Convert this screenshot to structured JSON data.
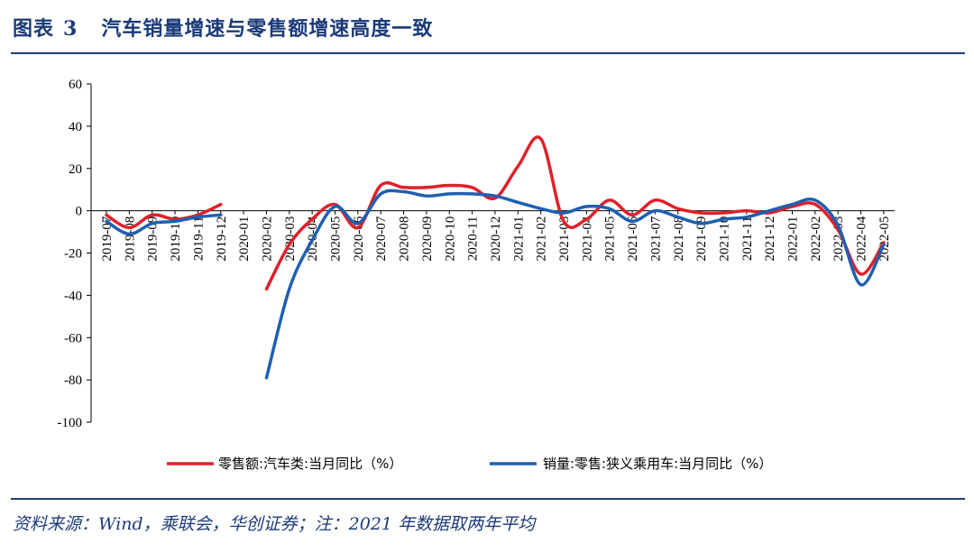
{
  "header": {
    "figure_label": "图表",
    "figure_number": "3",
    "title": "汽车销量增速与零售额增速高度一致"
  },
  "footer": {
    "source": "资料来源：Wind，乘联会，华创证券；注：2021 年数据取两年平均"
  },
  "chart_data": {
    "type": "line",
    "categories": [
      "2019-07",
      "2019-08",
      "2019-09",
      "2019-10",
      "2019-11",
      "2019-12",
      "2020-01",
      "2020-02",
      "2020-03",
      "2020-04",
      "2020-05",
      "2020-06",
      "2020-07",
      "2020-08",
      "2020-09",
      "2020-10",
      "2020-11",
      "2020-12",
      "2021-01",
      "2021-02",
      "2021-03",
      "2021-04",
      "2021-05",
      "2021-06",
      "2021-07",
      "2021-08",
      "2021-09",
      "2021-10",
      "2021-11",
      "2021-12",
      "2022-01",
      "2022-02",
      "2022-03",
      "2022-04",
      "2022-05"
    ],
    "ylim": [
      -100,
      60
    ],
    "yticks": [
      60,
      40,
      20,
      0,
      -20,
      -40,
      -60,
      -80,
      -100
    ],
    "series": [
      {
        "name": "零售额:汽车类:当月同比（%）",
        "color": "#e0202a",
        "values": [
          -2,
          -8,
          -2,
          -4,
          -2,
          3,
          null,
          -37,
          -16,
          -4,
          3,
          -8,
          12,
          11,
          11,
          12,
          11,
          6,
          21,
          34,
          -5,
          -4,
          5,
          -2,
          5,
          1,
          -1,
          -1,
          0,
          -1,
          2,
          3,
          -9,
          -30,
          -15
        ]
      },
      {
        "name": "销量:零售:狭义乘用车:当月同比（%）",
        "color": "#1f5fb0",
        "values": [
          -5,
          -11,
          -6,
          -5,
          -3,
          -2,
          null,
          -79,
          -37,
          -14,
          2,
          -6,
          8,
          9,
          7,
          8,
          8,
          7,
          4,
          1,
          -1,
          2,
          1,
          -5,
          0,
          -3,
          -6,
          -4,
          -3,
          0,
          3,
          5,
          -7,
          -35,
          -16
        ]
      }
    ],
    "legend_placement": "bottom"
  }
}
